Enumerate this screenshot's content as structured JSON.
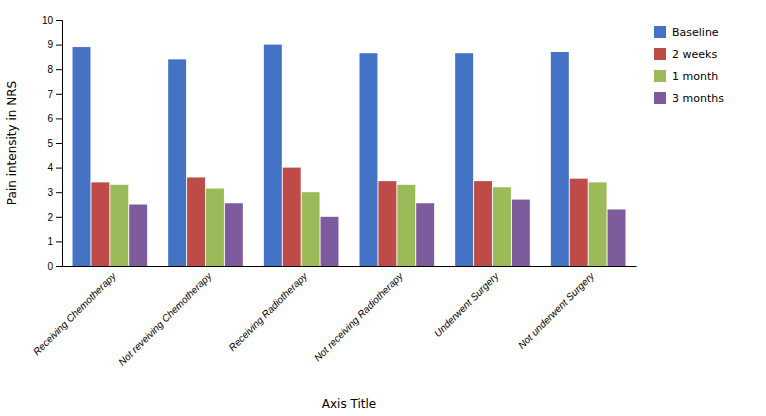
{
  "chart_data": {
    "type": "bar",
    "xlabel": "Axis Title",
    "ylabel": "Pain intensity in NRS",
    "categories": [
      "Receiving Chemotherapy",
      "Not reveiving Chemotherapy",
      "Receiving Radiotherapy",
      "Not receiving Radiotherapy",
      "Underwent Surgery",
      "Not underwent Surgery"
    ],
    "series": [
      {
        "name": "Baseline",
        "color": "#4472C4",
        "values": [
          8.9,
          8.4,
          9.0,
          8.65,
          8.65,
          8.7
        ]
      },
      {
        "name": "2 weeks",
        "color": "#BE4B48",
        "values": [
          3.4,
          3.6,
          4.0,
          3.45,
          3.45,
          3.55
        ]
      },
      {
        "name": "1 month",
        "color": "#9BBB59",
        "values": [
          3.3,
          3.15,
          3.0,
          3.3,
          3.2,
          3.4
        ]
      },
      {
        "name": "3 months",
        "color": "#7E5B9C",
        "values": [
          2.5,
          2.55,
          2.0,
          2.55,
          2.7,
          2.3
        ]
      }
    ],
    "ylim": [
      0,
      10
    ],
    "yticks": [
      0,
      1,
      2,
      3,
      4,
      5,
      6,
      7,
      8,
      9,
      10
    ],
    "grid": false,
    "legend": "right"
  }
}
